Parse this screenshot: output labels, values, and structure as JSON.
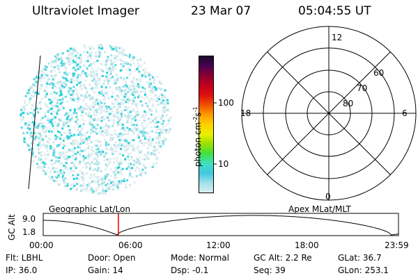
{
  "header": {
    "instrument": "Ultraviolet Imager",
    "date": "23 Mar 07",
    "time": "05:04:55 UT"
  },
  "colorbar": {
    "label": "photon cm",
    "label_exp1": "-2",
    "label_mid": "s",
    "label_exp2": "-1",
    "tick_100": "100",
    "tick_10": "10",
    "colors": [
      "#1a0a2e",
      "#4a0050",
      "#8b0033",
      "#c0001a",
      "#e01010",
      "#f05000",
      "#ff9a00",
      "#ffd000",
      "#e8f000",
      "#9adf00",
      "#40e040",
      "#40e0c0",
      "#40c8e0",
      "#a0e0e8",
      "#d8eef0"
    ]
  },
  "polar_plot": {
    "mlt_labels": {
      "top": "12",
      "bottom": "0",
      "left": "18",
      "right": "6"
    },
    "lat_labels": [
      "60",
      "70",
      "80"
    ]
  },
  "timeline": {
    "left_label": "Geographic Lat/Lon",
    "right_label": "Apex MLat/MLT",
    "y_axis_label": "GC Alt",
    "y_ticks": [
      "9.0",
      "1.8"
    ],
    "x_ticks": [
      "00:00",
      "06:00",
      "12:00",
      "18:00",
      "23:59"
    ],
    "current_time_hours": 5.08
  },
  "info": {
    "filter": "Flt: LBHL",
    "ip": "IP: 36.0",
    "door": "Door: Open",
    "gain": "Gain: 14",
    "mode": "Mode: Normal",
    "dsp": "Dsp:   -0.1",
    "gc_alt": "GC Alt: 2.2 Re",
    "seq": "Seq: 39",
    "glat": "GLat:  36.7",
    "glon": "GLon: 253.1"
  }
}
